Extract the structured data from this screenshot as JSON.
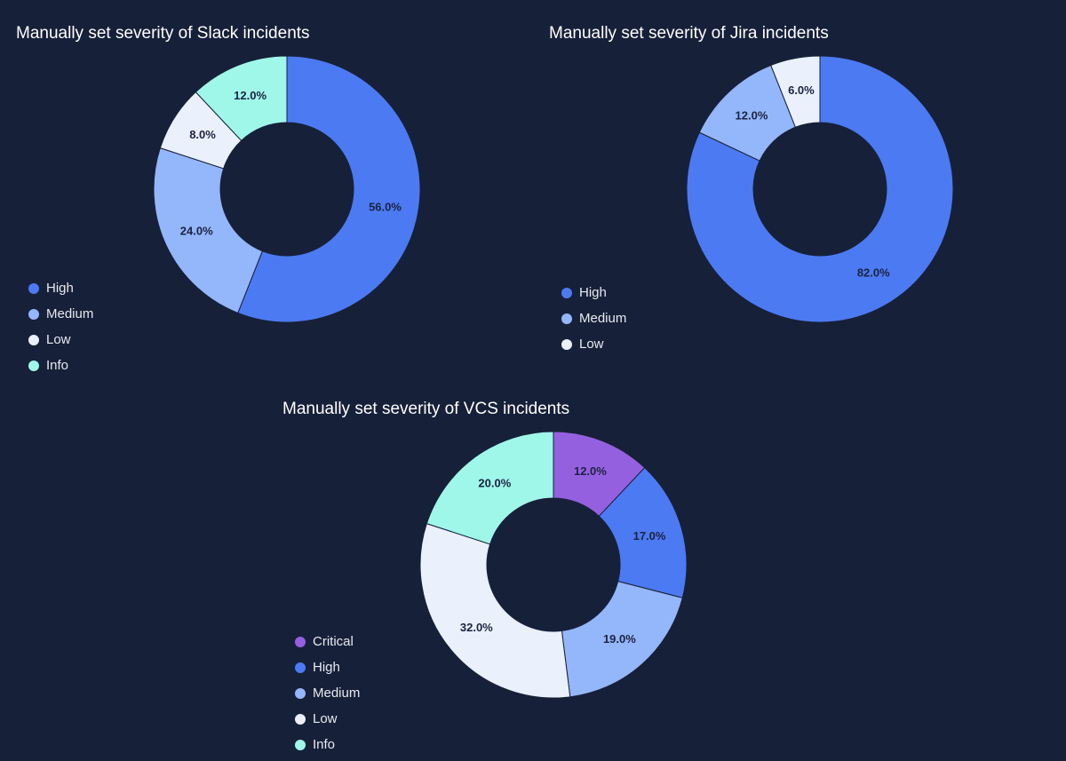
{
  "chart_data": [
    {
      "type": "donut",
      "title": "Manually set severity of Slack incidents",
      "categories": [
        "High",
        "Medium",
        "Low",
        "Info"
      ],
      "values": [
        56,
        24,
        8,
        12
      ],
      "value_labels": [
        "56.0%",
        "24.0%",
        "8.0%",
        "12.0%"
      ],
      "colors": [
        "#4c7af2",
        "#94b6fb",
        "#eaf0fc",
        "#9ff7ea"
      ]
    },
    {
      "type": "donut",
      "title": "Manually set severity of Jira incidents",
      "categories": [
        "High",
        "Medium",
        "Low"
      ],
      "values": [
        82,
        12,
        6
      ],
      "value_labels": [
        "82.0%",
        "12.0%",
        "6.0%"
      ],
      "colors": [
        "#4c7af2",
        "#94b6fb",
        "#eaf0fc"
      ]
    },
    {
      "type": "donut",
      "title": "Manually set severity of VCS incidents",
      "categories": [
        "Critical",
        "High",
        "Medium",
        "Low",
        "Info"
      ],
      "values": [
        12,
        17,
        19,
        32,
        20
      ],
      "value_labels": [
        "12.0%",
        "17.0%",
        "19.0%",
        "32.0%",
        "20.0%"
      ],
      "colors": [
        "#9560e0",
        "#4c7af2",
        "#94b6fb",
        "#eaf0fc",
        "#9ff7ea"
      ]
    }
  ]
}
